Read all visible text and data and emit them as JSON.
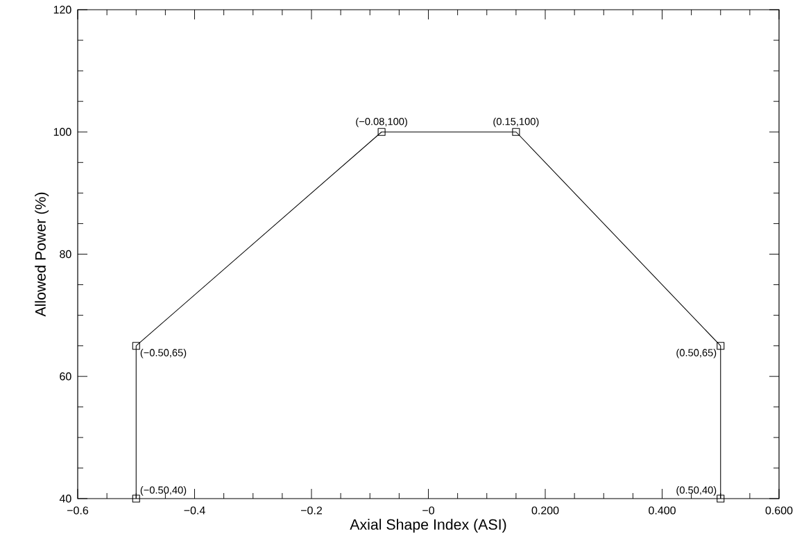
{
  "chart_data": {
    "type": "line",
    "xlabel": "Axial Shape Index (ASI)",
    "ylabel": "Allowed Power (%)",
    "x": [
      -0.5,
      -0.5,
      -0.08,
      0.15,
      0.5,
      0.5
    ],
    "series": [
      {
        "color": "#000000",
        "values": [
          40,
          65,
          100,
          100,
          65,
          40
        ]
      }
    ],
    "marker": "square",
    "line_style": "solid",
    "xlim": [
      -0.6,
      0.6
    ],
    "ylim": [
      40,
      120
    ],
    "xticks": [
      {
        "value": -0.6,
        "label": "−0.6"
      },
      {
        "value": -0.4,
        "label": "−0.4"
      },
      {
        "value": -0.2,
        "label": "−0.2"
      },
      {
        "value": 0,
        "label": "−0"
      },
      {
        "value": 0.2,
        "label": "0.200"
      },
      {
        "value": 0.4,
        "label": "0.400"
      },
      {
        "value": 0.6,
        "label": "0.600"
      }
    ],
    "yticks": [
      40,
      60,
      80,
      100,
      120
    ],
    "annotations": [
      {
        "text": "(−0.50,40)",
        "x": -0.5,
        "y": 40
      },
      {
        "text": "(−0.50,65)",
        "x": -0.5,
        "y": 65
      },
      {
        "text": "(−0.08,100)",
        "x": -0.08,
        "y": 100
      },
      {
        "text": "(0.15,100)",
        "x": 0.15,
        "y": 100
      },
      {
        "text": "(0.50,65)",
        "x": 0.5,
        "y": 65
      },
      {
        "text": "(0.50,40)",
        "x": 0.5,
        "y": 40
      }
    ]
  }
}
